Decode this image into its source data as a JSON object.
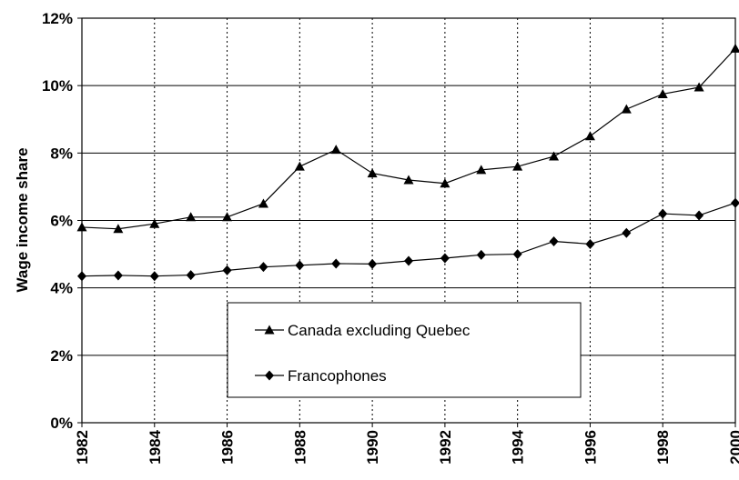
{
  "chart_data": {
    "type": "line",
    "ylabel": "Wage income share",
    "x": [
      1982,
      1983,
      1984,
      1985,
      1986,
      1987,
      1988,
      1989,
      1990,
      1991,
      1992,
      1993,
      1994,
      1995,
      1996,
      1997,
      1998,
      1999,
      2000
    ],
    "series": [
      {
        "name": "Canada excluding Quebec",
        "color": "#000000",
        "marker": "triangle",
        "values": [
          5.8,
          5.75,
          5.9,
          6.1,
          6.1,
          6.5,
          7.6,
          8.1,
          7.4,
          7.2,
          7.1,
          7.5,
          7.6,
          7.9,
          8.5,
          9.3,
          9.75,
          9.95,
          11.1
        ]
      },
      {
        "name": "Francophones",
        "color": "#000000",
        "marker": "diamond",
        "values": [
          4.35,
          4.37,
          4.35,
          4.38,
          4.52,
          4.62,
          4.67,
          4.72,
          4.71,
          4.8,
          4.88,
          4.98,
          5.0,
          5.38,
          5.3,
          5.63,
          6.2,
          6.15,
          6.52
        ]
      }
    ],
    "xlim": [
      1982,
      2000
    ],
    "xticks": [
      1982,
      1984,
      1986,
      1988,
      1990,
      1992,
      1994,
      1996,
      1998,
      2000
    ],
    "ylim": [
      0,
      12
    ],
    "yticks": [
      {
        "value": 0,
        "label": "0%"
      },
      {
        "value": 2,
        "label": "2%"
      },
      {
        "value": 4,
        "label": "4%"
      },
      {
        "value": 6,
        "label": "6%"
      },
      {
        "value": 8,
        "label": "8%"
      },
      {
        "value": 10,
        "label": "10%"
      },
      {
        "value": 12,
        "label": "12%"
      }
    ],
    "grid": true,
    "legend": "lower center"
  }
}
